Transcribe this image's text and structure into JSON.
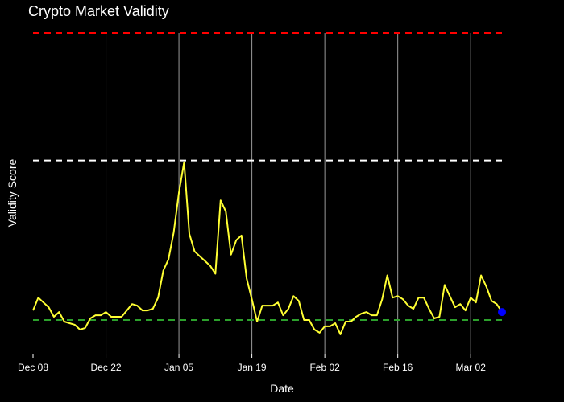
{
  "chart_data": {
    "type": "line",
    "title": "Crypto Market Validity",
    "xlabel": "Date",
    "ylabel": "Validity Score",
    "x_tick_labels": [
      "Dec 08",
      "Dec 22",
      "Jan 05",
      "Jan 19",
      "Feb 02",
      "Feb 16",
      "Mar 02"
    ],
    "x_start": "2024-12-08",
    "x_end": "2025-03-08",
    "ylim": [
      -0.2,
      1.8
    ],
    "grid": {
      "x": true,
      "y": false
    },
    "reference_lines": [
      {
        "y": 1.8,
        "color": "#ff0000",
        "style": "dashed"
      },
      {
        "y": 1.0,
        "color": "#ffffff",
        "style": "dashed"
      },
      {
        "y": 0.0,
        "color": "#2ca02c",
        "style": "dashed"
      }
    ],
    "series": [
      {
        "color": "#ffff33",
        "x": [
          "2024-12-08",
          "2024-12-09",
          "2024-12-10",
          "2024-12-11",
          "2024-12-12",
          "2024-12-13",
          "2024-12-14",
          "2024-12-15",
          "2024-12-16",
          "2024-12-17",
          "2024-12-18",
          "2024-12-19",
          "2024-12-20",
          "2024-12-21",
          "2024-12-22",
          "2024-12-23",
          "2024-12-24",
          "2024-12-25",
          "2024-12-26",
          "2024-12-27",
          "2024-12-28",
          "2024-12-29",
          "2024-12-30",
          "2024-12-31",
          "2025-01-01",
          "2025-01-02",
          "2025-01-03",
          "2025-01-04",
          "2025-01-05",
          "2025-01-06",
          "2025-01-07",
          "2025-01-08",
          "2025-01-09",
          "2025-01-10",
          "2025-01-11",
          "2025-01-12",
          "2025-01-13",
          "2025-01-14",
          "2025-01-15",
          "2025-01-16",
          "2025-01-17",
          "2025-01-18",
          "2025-01-19",
          "2025-01-20",
          "2025-01-21",
          "2025-01-22",
          "2025-01-23",
          "2025-01-24",
          "2025-01-25",
          "2025-01-26",
          "2025-01-27",
          "2025-01-28",
          "2025-01-29",
          "2025-01-30",
          "2025-01-31",
          "2025-02-01",
          "2025-02-02",
          "2025-02-03",
          "2025-02-04",
          "2025-02-05",
          "2025-02-06",
          "2025-02-07",
          "2025-02-08",
          "2025-02-09",
          "2025-02-10",
          "2025-02-11",
          "2025-02-12",
          "2025-02-13",
          "2025-02-14",
          "2025-02-15",
          "2025-02-16",
          "2025-02-17",
          "2025-02-18",
          "2025-02-19",
          "2025-02-20",
          "2025-02-21",
          "2025-02-22",
          "2025-02-23",
          "2025-02-24",
          "2025-02-25",
          "2025-02-26",
          "2025-02-27",
          "2025-02-28",
          "2025-03-01",
          "2025-03-02",
          "2025-03-03",
          "2025-03-04",
          "2025-03-05",
          "2025-03-06",
          "2025-03-07",
          "2025-03-08"
        ],
        "y": [
          0.06,
          0.14,
          0.11,
          0.08,
          0.02,
          0.05,
          -0.01,
          -0.02,
          -0.03,
          -0.06,
          -0.05,
          0.01,
          0.03,
          0.03,
          0.05,
          0.02,
          0.02,
          0.02,
          0.06,
          0.1,
          0.09,
          0.06,
          0.06,
          0.07,
          0.14,
          0.31,
          0.38,
          0.55,
          0.8,
          0.99,
          0.54,
          0.43,
          0.4,
          0.37,
          0.34,
          0.29,
          0.75,
          0.68,
          0.41,
          0.5,
          0.53,
          0.26,
          0.13,
          -0.01,
          0.09,
          0.09,
          0.09,
          0.11,
          0.03,
          0.07,
          0.15,
          0.12,
          0.0,
          0.0,
          -0.06,
          -0.08,
          -0.04,
          -0.04,
          -0.02,
          -0.09,
          -0.01,
          -0.01,
          0.02,
          0.04,
          0.05,
          0.03,
          0.03,
          0.13,
          0.28,
          0.14,
          0.15,
          0.13,
          0.09,
          0.07,
          0.14,
          0.14,
          0.07,
          0.01,
          0.02,
          0.22,
          0.15,
          0.08,
          0.1,
          0.06,
          0.14,
          0.11,
          0.28,
          0.21,
          0.12,
          0.1,
          0.05
        ]
      }
    ]
  }
}
